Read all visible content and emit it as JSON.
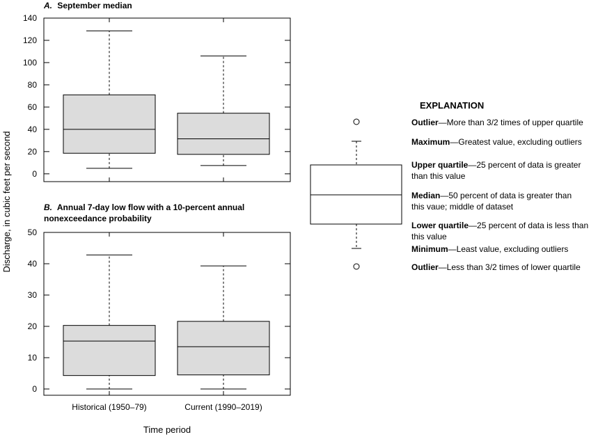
{
  "chart_data": [
    {
      "type": "box",
      "panel_letter": "A.",
      "title": "September median",
      "categories": [
        "Historical (1950–79)",
        "Current (1990–2019)"
      ],
      "boxes": [
        {
          "min": 5,
          "q1": 18.5,
          "median": 40,
          "q3": 71,
          "max": 128.5
        },
        {
          "min": 7.5,
          "q1": 17.5,
          "median": 31.5,
          "q3": 54.5,
          "max": 106
        }
      ],
      "ylim": [
        -7,
        140
      ],
      "yticks": [
        "0",
        "20",
        "40",
        "60",
        "80",
        "100",
        "120",
        "140"
      ]
    },
    {
      "type": "box",
      "panel_letter": "B.",
      "title": "Annual 7-day low flow with a 10-percent annual",
      "title_line2": "nonexceedance probability",
      "categories": [
        "Historical (1950–79)",
        "Current (1990–2019)"
      ],
      "boxes": [
        {
          "min": 0,
          "q1": 4.3,
          "median": 15.3,
          "q3": 20.3,
          "max": 42.8
        },
        {
          "min": 0,
          "q1": 4.5,
          "median": 13.5,
          "q3": 21.6,
          "max": 39.3
        }
      ],
      "ylim": [
        -2,
        50
      ],
      "yticks": [
        "0",
        "10",
        "20",
        "30",
        "40",
        "50"
      ]
    }
  ],
  "y_axis_label": "Discharge, in cubic feet per second",
  "x_axis_label": "Time period",
  "x_tick_labels": [
    "Historical (1950–79)",
    "Current (1990–2019)"
  ],
  "explanation": {
    "heading": "EXPLANATION",
    "items": [
      {
        "term": "Outlier",
        "desc": "—More than 3/2 times of upper quartile",
        "desc2": ""
      },
      {
        "term": "Maximum",
        "desc": "—Greatest value, excluding outliers",
        "desc2": ""
      },
      {
        "term": "Upper quartile",
        "desc": "—25 percent of data is greater",
        "desc2": "than this value"
      },
      {
        "term": "Median",
        "desc": "—50 percent of data is greater than",
        "desc2": "this vaue; middle of dataset"
      },
      {
        "term": "Lower quartile",
        "desc": "—25 percent of data is less than",
        "desc2": "this value"
      },
      {
        "term": "Minimum",
        "desc": "—Least value, excluding outliers",
        "desc2": ""
      },
      {
        "term": "Outlier",
        "desc": "—Less than 3/2 times of lower quartile",
        "desc2": ""
      }
    ]
  },
  "colors": {
    "box_fill": "#dcdcdc",
    "line": "#000000"
  }
}
